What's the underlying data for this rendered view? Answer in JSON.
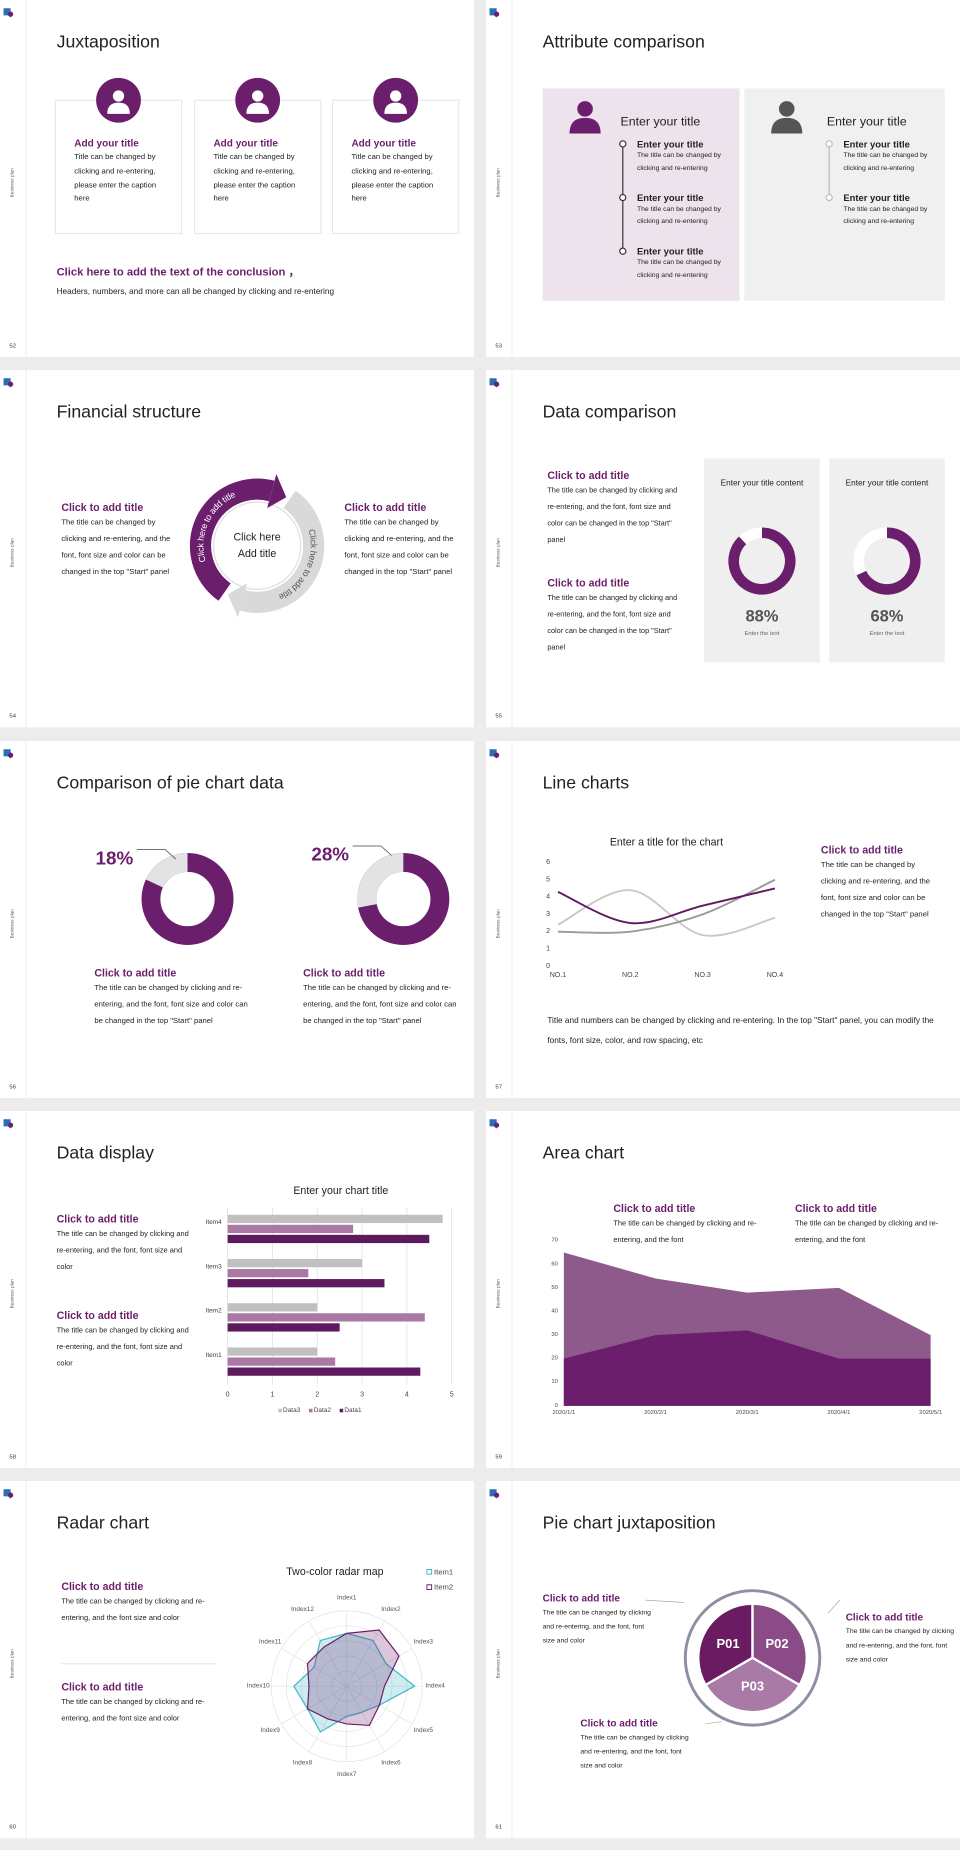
{
  "slides": [
    {
      "number": 52,
      "side_label": "Business plan",
      "title": "Juxtaposition",
      "cards": [
        {
          "title": "Add your title",
          "text": "Title can be changed by clicking and re-entering, please enter the caption here"
        },
        {
          "title": "Add your title",
          "text": "Title can be changed by clicking and re-entering, please enter the caption here"
        },
        {
          "title": "Add your title",
          "text": "Title can be changed by clicking and re-entering, please enter the caption here"
        }
      ],
      "conclusion_title": "Click here to add the text of the conclusion ，",
      "conclusion_text": "Headers, numbers, and more can all be changed by clicking and re-entering"
    },
    {
      "number": 53,
      "side_label": "Business plan",
      "title": "Attribute comparison",
      "panels": [
        {
          "title": "Enter your title",
          "items": [
            {
              "title": "Enter your title",
              "text": "The title can be changed by clicking and re-entering"
            },
            {
              "title": "Enter your title",
              "text": "The title can be changed by clicking and re-entering"
            },
            {
              "title": "Enter your title",
              "text": "The title can be changed by clicking and re-entering"
            }
          ]
        },
        {
          "title": "Enter your title",
          "items": [
            {
              "title": "Enter your title",
              "text": "The title can be changed by clicking and re-entering"
            },
            {
              "title": "Enter your title",
              "text": "The title can be changed by clicking and re-entering"
            }
          ]
        }
      ]
    },
    {
      "number": 54,
      "side_label": "Business plan",
      "title": "Financial structure",
      "left": {
        "title": "Click to add title",
        "text": "The title can be changed by clicking and re-entering, and the font, font size and color can be changed in the top \"Start\" panel"
      },
      "right": {
        "title": "Click to add title",
        "text": "The title can be changed by clicking and re-entering, and the font, font size and color can be changed in the top \"Start\" panel"
      },
      "arc_labels": [
        "Click here to add title",
        "Click here to add title"
      ],
      "center_lines": [
        "Click here",
        "Add title"
      ]
    },
    {
      "number": 55,
      "side_label": "Business plan",
      "title": "Data comparison",
      "blocks": [
        {
          "title": "Click to add title",
          "text": "The title can be changed by clicking and re-entering, and the font, font size and color can be changed in the top \"Start\" panel"
        },
        {
          "title": "Click to add title",
          "text": "The title can be changed by clicking and re-entering, and the font, font size and color can be changed in the top \"Start\" panel"
        }
      ],
      "cards": [
        {
          "title": "Enter your title content",
          "value": 88,
          "value_label": "88%",
          "caption": "Enter the text"
        },
        {
          "title": "Enter your title content",
          "value": 68,
          "value_label": "68%",
          "caption": "Enter the text"
        }
      ]
    },
    {
      "number": 56,
      "side_label": "Business plan",
      "title": "Comparison of pie chart data",
      "items": [
        {
          "value": 18,
          "value_label": "18%",
          "title": "Click to add title",
          "text": "The title can be changed by clicking and re-entering, and the font, font size and color can be changed in the top \"Start\" panel"
        },
        {
          "value": 28,
          "value_label": "28%",
          "title": "Click to add title",
          "text": "The title can be changed by clicking and re-entering, and the font, font size and color can be changed in the top \"Start\" panel"
        }
      ]
    },
    {
      "number": 57,
      "side_label": "Business plan",
      "title": "Line charts",
      "block": {
        "title": "Click to add title",
        "text": "The title can be changed by clicking and re-entering, and the font, font size and color can be changed in the top \"Start\" panel"
      },
      "footer": "Title and numbers can be changed by clicking and re-entering. In the top \"Start\" panel, you can modify the fonts, font size, color, and row spacing, etc"
    },
    {
      "number": 58,
      "side_label": "Business plan",
      "title": "Data display",
      "blocks": [
        {
          "title": "Click to add title",
          "text": "The title can be changed by clicking and re-entering, and the font, font size and color"
        },
        {
          "title": "Click to add title",
          "text": "The title can be changed by clicking and re-entering, and the font, font size and color"
        }
      ]
    },
    {
      "number": 59,
      "side_label": "Business plan",
      "title": "Area chart",
      "blocks": [
        {
          "title": "Click to add title",
          "text": "The title can be changed by clicking and re-entering, and the font"
        },
        {
          "title": "Click to add title",
          "text": "The title can be changed by clicking and re-entering, and the font"
        }
      ]
    },
    {
      "number": 60,
      "side_label": "Business plan",
      "title": "Radar chart",
      "blocks": [
        {
          "title": "Click to add title",
          "text": "The title can be changed by clicking and re-entering, and the font size and color"
        },
        {
          "title": "Click to add title",
          "text": "The title can be changed by clicking and re-entering, and the font size and color"
        }
      ]
    },
    {
      "number": 61,
      "side_label": "Business plan",
      "title": "Pie chart juxtaposition",
      "segments": [
        "P01",
        "P02",
        "P03"
      ],
      "blocks": [
        {
          "title": "Click to add title",
          "text": "The title can be changed by clicking and re-entering, and the font, font size and color"
        },
        {
          "title": "Click to add title",
          "text": "The title can be changed by clicking and re-entering, and the font, font size and color"
        },
        {
          "title": "Click to add title",
          "text": "The title can be changed by clicking and re-entering, and the font, font size and color"
        }
      ]
    }
  ],
  "chart_data": [
    {
      "type": "line",
      "title": "Enter a title for the chart",
      "categories": [
        "NO.1",
        "NO.2",
        "NO.3",
        "NO.4"
      ],
      "series": [
        {
          "color": "#c8c8c8",
          "values": [
            2.4,
            4.4,
            1.8,
            2.8
          ]
        },
        {
          "color": "#999999",
          "values": [
            2,
            2,
            3,
            5
          ]
        },
        {
          "color": "#5e1a5f",
          "values": [
            4.3,
            2.5,
            3.5,
            4.5
          ]
        }
      ],
      "ylim": [
        0,
        6
      ],
      "yticks": [
        0,
        1,
        2,
        3,
        4,
        5,
        6
      ],
      "smooth": true
    },
    {
      "type": "bar",
      "orientation": "horizontal",
      "title": "Enter your chart title",
      "categories": [
        "Item1",
        "Item2",
        "Item3",
        "Item4"
      ],
      "series": [
        {
          "name": "Data3",
          "color": "#c0c0c0",
          "values": [
            2,
            2,
            3,
            4.8
          ]
        },
        {
          "name": "Data2",
          "color": "#a978a5",
          "values": [
            2.4,
            4.4,
            1.8,
            2.8
          ]
        },
        {
          "name": "Data1",
          "color": "#5e1a5f",
          "values": [
            4.3,
            2.5,
            3.5,
            4.5
          ]
        }
      ],
      "xlim": [
        0,
        5
      ],
      "xticks": [
        0,
        1,
        2,
        3,
        4,
        5
      ],
      "grid": true,
      "legend": "bottom"
    },
    {
      "type": "area",
      "categories": [
        "2020/1/1",
        "2020/2/1",
        "2020/3/1",
        "2020/4/1",
        "2020/5/1"
      ],
      "series": [
        {
          "color": "#8e5a8c",
          "values": [
            65,
            54,
            48,
            50,
            30
          ]
        },
        {
          "color": "#6b1e6b",
          "values": [
            20,
            30,
            32,
            20,
            20
          ]
        }
      ],
      "ylim": [
        0,
        70
      ],
      "yticks": [
        0,
        10,
        20,
        30,
        40,
        50,
        60,
        70
      ]
    },
    {
      "type": "radar",
      "title": "Two-color radar map",
      "categories": [
        "Index1",
        "Index2",
        "Index3",
        "Index4",
        "Index5",
        "Index6",
        "Index7",
        "Index8",
        "Index9",
        "Index10",
        "Index11",
        "Index12"
      ],
      "series": [
        {
          "name": "Item1",
          "color": "#3fb5c9",
          "values": [
            3.5,
            3.5,
            3,
            4.5,
            2.5,
            2,
            2,
            3.5,
            3,
            3.5,
            2.5,
            3.5
          ]
        },
        {
          "name": "Item2",
          "color": "#6b1e6b",
          "values": [
            3.5,
            4.3,
            4,
            2.5,
            2.5,
            3,
            2.5,
            2.5,
            3,
            2.5,
            3,
            3
          ]
        }
      ],
      "ylim": [
        0,
        5
      ],
      "legend": "top-right"
    }
  ]
}
